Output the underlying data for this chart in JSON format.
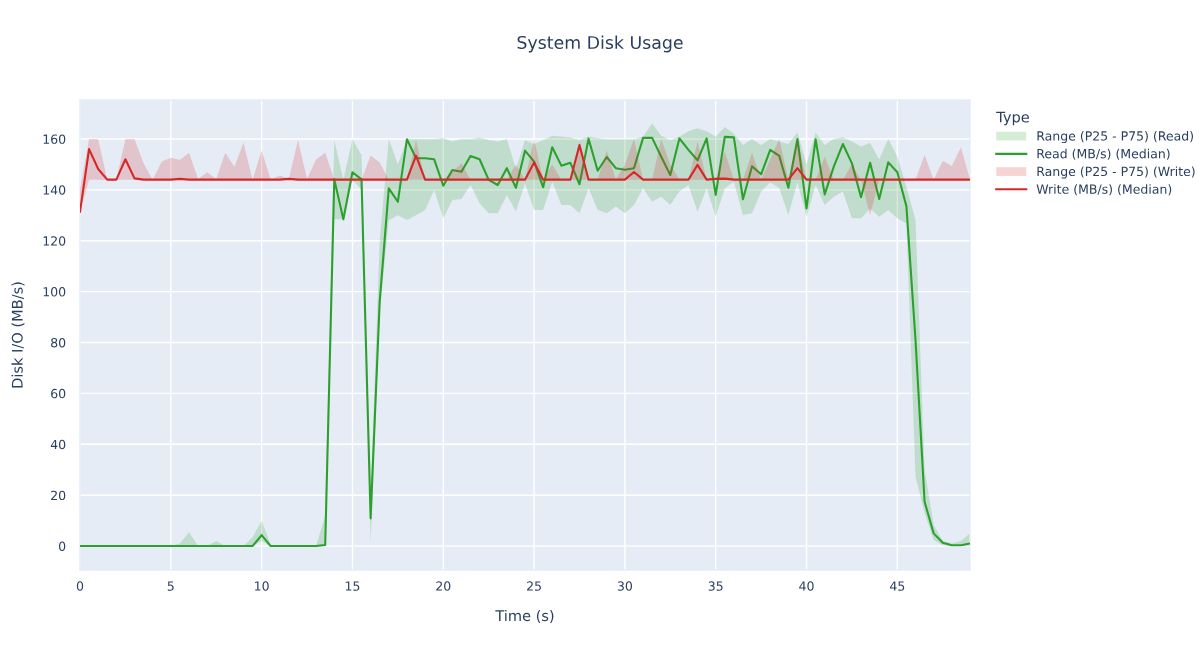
{
  "chart_data": {
    "type": "line",
    "title": "System Disk Usage",
    "xlabel": "Time (s)",
    "ylabel": "Disk I/O (MB/s)",
    "legend_title": "Type",
    "x": [
      0,
      0.5,
      1,
      1.5,
      2,
      2.5,
      3,
      3.5,
      4,
      4.5,
      5,
      5.5,
      6,
      6.5,
      7,
      7.5,
      8,
      8.5,
      9,
      9.5,
      10,
      10.5,
      11,
      11.5,
      12,
      12.5,
      13,
      13.5,
      14,
      14.5,
      15,
      15.5,
      16,
      16.5,
      17,
      17.5,
      18,
      18.5,
      19,
      19.5,
      20,
      20.5,
      21,
      21.5,
      22,
      22.5,
      23,
      23.5,
      24,
      24.5,
      25,
      25.5,
      26,
      26.5,
      27,
      27.5,
      28,
      28.5,
      29,
      29.5,
      30,
      30.5,
      31,
      31.5,
      32,
      32.5,
      33,
      33.5,
      34,
      34.5,
      35,
      35.5,
      36,
      36.5,
      37,
      37.5,
      38,
      38.5,
      39,
      39.5,
      40,
      40.5,
      41,
      41.5,
      42,
      42.5,
      43,
      43.5,
      44,
      44.5,
      45,
      45.5,
      46,
      46.5,
      47,
      47.5,
      48,
      48.5,
      49
    ],
    "series": [
      {
        "name": "Range (P25 - P75) (Read)",
        "type": "area",
        "color": "#2ca02c",
        "values": [
          null,
          null,
          null,
          null,
          null,
          null,
          null,
          null,
          null,
          null,
          null,
          null,
          null,
          null,
          null,
          null,
          null,
          null,
          null,
          null,
          null,
          null,
          null,
          null,
          null,
          null,
          null,
          null,
          null,
          null,
          null,
          null,
          null,
          null,
          null,
          null,
          null,
          null,
          null,
          null,
          null,
          null,
          null,
          null,
          null,
          null,
          null,
          null,
          null,
          null,
          null,
          null,
          null,
          null,
          null,
          null,
          null,
          null,
          null,
          null,
          null,
          null,
          null,
          null,
          null,
          null,
          null,
          null,
          null,
          null,
          null,
          null,
          null,
          null,
          null,
          null,
          null,
          null,
          null,
          null,
          null,
          null,
          null,
          null,
          null,
          null,
          null,
          null,
          null,
          null,
          null,
          null,
          null,
          null,
          null,
          null,
          null,
          null,
          null
        ],
        "lower": [
          0,
          0,
          0,
          0,
          0,
          0,
          0,
          0,
          0,
          0,
          0,
          0,
          0,
          0,
          0,
          0,
          0,
          0,
          0,
          0,
          2,
          0,
          0,
          0,
          0,
          0,
          0,
          0,
          128.4,
          128.4,
          144,
          140,
          1,
          92,
          128,
          130,
          128.1,
          130,
          132.1,
          139.9,
          128.8,
          136,
          136.4,
          141.9,
          134.7,
          130.8,
          130.8,
          138,
          131.4,
          142.6,
          132.1,
          132.1,
          143.2,
          134,
          134,
          130.8,
          140.6,
          132.1,
          130.8,
          133.4,
          130.8,
          134,
          140.6,
          135.3,
          137.3,
          134,
          139.3,
          141.9,
          131.4,
          140.6,
          129.4,
          140.6,
          143.2,
          130.1,
          130.8,
          139.3,
          143,
          140.6,
          130.1,
          143,
          129.4,
          141.9,
          134,
          137.3,
          139.3,
          128.8,
          128.8,
          132.7,
          129.4,
          132.1,
          128.8,
          126.8,
          27.2,
          13,
          2.4,
          0.3,
          0,
          0,
          0
        ],
        "upper": [
          0,
          0,
          0,
          0,
          0,
          0,
          0,
          0,
          0,
          0,
          0,
          1,
          5.4,
          0,
          0,
          2,
          0,
          0,
          0,
          3.5,
          10,
          0.5,
          0,
          0,
          0,
          0,
          0,
          12,
          159.6,
          144,
          160,
          153.7,
          20,
          120,
          160,
          150,
          160,
          160,
          160,
          160,
          160.4,
          159,
          160,
          159.9,
          160.6,
          159.6,
          159,
          159.9,
          148.3,
          159.6,
          158,
          159.6,
          161.3,
          161,
          160.6,
          159.6,
          161,
          160.4,
          159.9,
          159.9,
          159.9,
          159.9,
          161,
          166.1,
          161.3,
          159.6,
          161,
          163,
          164.2,
          163,
          161,
          164.7,
          162,
          157.6,
          160,
          157.6,
          160,
          159,
          158,
          162.5,
          150,
          162.5,
          157.6,
          160,
          160.7,
          159,
          157,
          158.4,
          152,
          160,
          153,
          141.2,
          128.1,
          30,
          8.3,
          2.1,
          1,
          2,
          5
        ]
      },
      {
        "name": "Read (MB/s) (Median)",
        "color": "#2ca02c",
        "values": [
          0,
          0,
          0,
          0,
          0,
          0,
          0,
          0,
          0,
          0,
          0,
          0,
          0,
          0,
          0,
          0,
          0,
          0,
          0,
          0,
          4.3,
          0,
          0,
          0,
          0,
          0,
          0,
          0.4,
          144.1,
          128.4,
          146.9,
          144.1,
          10.9,
          96,
          140.6,
          135.3,
          159.9,
          152.4,
          152.4,
          152,
          141.6,
          147.8,
          147.1,
          153.3,
          152,
          143.9,
          141.9,
          148.5,
          140.8,
          155.4,
          151.1,
          141,
          156.7,
          149.5,
          150.6,
          142.2,
          160.1,
          147.5,
          152.9,
          148.5,
          147.9,
          148.5,
          160.4,
          160.4,
          153,
          145.8,
          160.2,
          155.7,
          151.6,
          160.2,
          138,
          160.8,
          160.6,
          136.3,
          149.3,
          146.1,
          155.7,
          153.3,
          140.8,
          160,
          132.7,
          159.9,
          138.2,
          149.1,
          158,
          150.4,
          137.1,
          150.6,
          136.4,
          150.8,
          146.9,
          133.5,
          81,
          17.4,
          5,
          1.3,
          0.3,
          0.3,
          1
        ]
      },
      {
        "name": "Range (P25 - P75) (Write)",
        "type": "area",
        "color": "#d62728",
        "values": [
          null,
          null,
          null,
          null,
          null,
          null,
          null,
          null,
          null,
          null,
          null,
          null,
          null,
          null,
          null,
          null,
          null,
          null,
          null,
          null,
          null,
          null,
          null,
          null,
          null,
          null,
          null,
          null,
          null,
          null,
          null,
          null,
          null,
          null,
          null,
          null,
          null,
          null,
          null,
          null,
          null,
          null,
          null,
          null,
          null,
          null,
          null,
          null,
          null,
          null,
          null,
          null,
          null,
          null,
          null,
          null,
          null,
          null,
          null,
          null,
          null,
          null,
          null,
          null,
          null,
          null,
          null,
          null,
          null,
          null,
          null,
          null,
          null,
          null,
          null,
          null,
          null,
          null,
          null,
          null,
          null,
          null,
          null,
          null,
          null,
          null,
          null,
          null,
          null,
          null,
          null,
          null,
          null,
          null,
          null,
          null,
          null,
          null,
          null
        ],
        "lower": [
          131.4,
          144,
          144,
          144,
          144,
          144,
          144,
          144,
          144,
          144,
          144,
          144,
          144,
          144,
          144,
          144,
          144,
          144,
          144,
          144,
          144,
          144,
          144,
          144,
          144,
          144,
          144,
          144,
          144,
          144,
          144,
          144,
          144,
          144,
          144,
          144,
          144,
          144,
          144,
          144,
          144,
          144,
          144,
          144,
          144,
          144,
          144,
          144,
          144,
          144,
          144,
          144,
          144,
          144,
          144,
          144,
          144,
          144,
          144,
          144,
          144,
          144,
          144,
          144,
          144,
          144,
          144,
          144,
          144,
          144,
          144,
          144,
          144,
          144,
          144,
          144,
          144,
          144,
          144,
          144,
          144,
          144,
          144,
          144,
          144,
          144,
          144,
          130,
          144,
          144,
          144,
          144,
          144,
          144,
          144,
          144,
          144,
          144,
          144
        ],
        "upper": [
          140,
          160,
          160,
          144,
          144,
          160,
          160,
          150.4,
          144,
          151.1,
          152.6,
          151.7,
          154.6,
          144.3,
          146.9,
          144.3,
          154.6,
          149.1,
          158.5,
          144,
          155.5,
          144,
          145.6,
          144.3,
          159.6,
          144.3,
          152,
          154.6,
          144,
          144,
          144,
          144,
          153.5,
          150.7,
          144,
          144,
          144,
          159.6,
          144,
          144,
          144,
          147,
          150.4,
          144,
          144,
          144,
          144,
          144,
          150,
          144,
          160,
          144,
          150,
          144,
          144,
          159,
          144,
          144,
          155.5,
          144,
          150,
          160,
          144,
          144,
          160,
          150,
          144,
          144,
          159,
          144,
          144.3,
          155,
          144,
          144,
          154.7,
          144,
          152,
          160,
          144,
          160,
          144,
          144,
          153,
          144,
          144,
          150,
          144,
          144,
          144,
          144,
          144,
          144,
          144,
          153.7,
          144,
          151.4,
          149.4,
          156.7,
          144
        ]
      },
      {
        "name": "Write (MB/s) (Median)",
        "color": "#d62728",
        "values": [
          131.4,
          156,
          148.2,
          144,
          144,
          152,
          144.5,
          144,
          144,
          144,
          144,
          144.3,
          144,
          144,
          144,
          144,
          144,
          144,
          144,
          144,
          144,
          144,
          144,
          144.3,
          144,
          144,
          144,
          144,
          144,
          144,
          144,
          144,
          144,
          144,
          144,
          144,
          144,
          153.4,
          144,
          144,
          144,
          144,
          144,
          144,
          144,
          144,
          144,
          144,
          144,
          144,
          150.7,
          144,
          144,
          144,
          144,
          157.6,
          144,
          144,
          144,
          144,
          144,
          147,
          144,
          144,
          144,
          144,
          144,
          144,
          149.8,
          144,
          144.3,
          144.4,
          144,
          144,
          144,
          144,
          144,
          144,
          144,
          148.5,
          144,
          144,
          144,
          144,
          144,
          144,
          144,
          144,
          144,
          144,
          144,
          144,
          144,
          144,
          144,
          144,
          144,
          144,
          144
        ]
      }
    ],
    "xlim": [
      0,
      49
    ],
    "ylim": [
      -9.4,
      175.3
    ],
    "xticks": [
      0,
      5,
      10,
      15,
      20,
      25,
      30,
      35,
      40,
      45
    ],
    "yticks": [
      0,
      20,
      40,
      60,
      80,
      100,
      120,
      140,
      160
    ],
    "grid": true,
    "legend": "top right",
    "marker": "none",
    "line_style": "solid"
  }
}
